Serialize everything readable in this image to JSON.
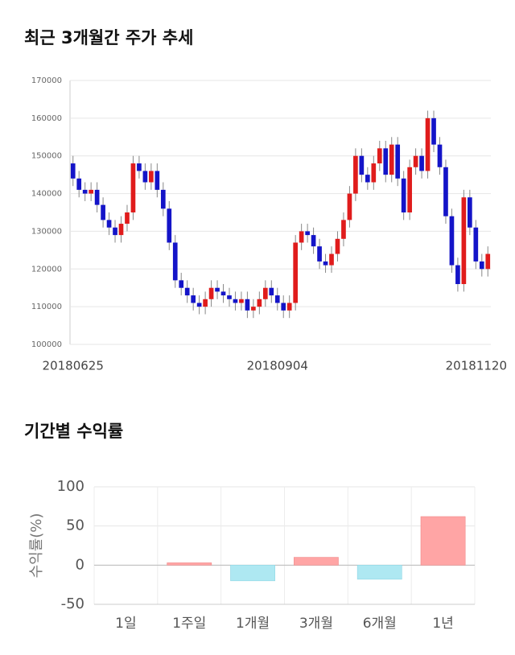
{
  "chart_data": [
    {
      "type": "candlestick",
      "title": "최근 3개월간 주가 추세",
      "categories": [
        "20180625",
        null,
        null,
        null,
        null,
        null,
        null,
        null,
        null,
        null,
        null,
        null,
        null,
        null,
        null,
        null,
        null,
        null,
        null,
        null,
        null,
        null,
        null,
        null,
        null,
        null,
        null,
        null,
        null,
        null,
        null,
        null,
        null,
        null,
        "20180904",
        null,
        null,
        null,
        null,
        null,
        null,
        null,
        null,
        null,
        null,
        null,
        null,
        null,
        null,
        null,
        null,
        null,
        null,
        null,
        null,
        null,
        null,
        null,
        null,
        null,
        null,
        null,
        null,
        null,
        null,
        null,
        null,
        null,
        null,
        "20181120"
      ],
      "open": [
        148000,
        144000,
        141000,
        140000,
        141000,
        137000,
        133000,
        131000,
        129000,
        132000,
        135000,
        148000,
        146000,
        143000,
        146000,
        141000,
        136000,
        127000,
        117000,
        115000,
        113000,
        111000,
        110000,
        112000,
        115000,
        114000,
        113000,
        112000,
        111000,
        112000,
        109000,
        110000,
        112000,
        115000,
        113000,
        111000,
        109000,
        111000,
        127000,
        130000,
        129000,
        126000,
        122000,
        121000,
        124000,
        128000,
        133000,
        140000,
        150000,
        145000,
        143000,
        148000,
        152000,
        145000,
        153000,
        144000,
        135000,
        147000,
        150000,
        146000,
        160000,
        153000,
        147000,
        134000,
        121000,
        116000,
        139000,
        131000,
        122000,
        120000
      ],
      "high": [
        150000,
        146000,
        143000,
        143000,
        143000,
        139000,
        135000,
        133000,
        134000,
        137000,
        150000,
        150000,
        148000,
        148000,
        148000,
        143000,
        138000,
        129000,
        119000,
        117000,
        115000,
        113000,
        114000,
        117000,
        117000,
        116000,
        115000,
        114000,
        114000,
        114000,
        112000,
        114000,
        117000,
        117000,
        115000,
        113000,
        113000,
        129000,
        132000,
        132000,
        131000,
        128000,
        124000,
        126000,
        130000,
        135000,
        142000,
        152000,
        152000,
        147000,
        150000,
        154000,
        154000,
        155000,
        155000,
        146000,
        149000,
        152000,
        152000,
        162000,
        162000,
        155000,
        149000,
        136000,
        123000,
        141000,
        141000,
        133000,
        124000,
        126000
      ],
      "low": [
        142000,
        139000,
        138000,
        138000,
        135000,
        131000,
        129000,
        127000,
        127000,
        130000,
        133000,
        144000,
        141000,
        141000,
        139000,
        134000,
        125000,
        115000,
        113000,
        111000,
        109000,
        108000,
        108000,
        110000,
        112000,
        111000,
        110000,
        109000,
        109000,
        107000,
        107000,
        108000,
        110000,
        111000,
        109000,
        107000,
        107000,
        109000,
        125000,
        127000,
        124000,
        120000,
        119000,
        119000,
        122000,
        126000,
        131000,
        138000,
        143000,
        141000,
        141000,
        146000,
        143000,
        143000,
        142000,
        133000,
        133000,
        145000,
        144000,
        144000,
        151000,
        145000,
        132000,
        119000,
        114000,
        114000,
        129000,
        120000,
        118000,
        118000
      ],
      "close": [
        144000,
        141000,
        140000,
        141000,
        137000,
        133000,
        131000,
        129000,
        132000,
        135000,
        148000,
        146000,
        143000,
        146000,
        141000,
        136000,
        127000,
        117000,
        115000,
        113000,
        111000,
        110000,
        112000,
        115000,
        114000,
        113000,
        112000,
        111000,
        112000,
        109000,
        110000,
        112000,
        115000,
        113000,
        111000,
        109000,
        111000,
        127000,
        130000,
        129000,
        126000,
        122000,
        121000,
        124000,
        128000,
        133000,
        140000,
        150000,
        145000,
        143000,
        148000,
        152000,
        145000,
        153000,
        144000,
        135000,
        147000,
        150000,
        146000,
        160000,
        153000,
        147000,
        134000,
        121000,
        116000,
        139000,
        131000,
        122000,
        120000,
        124000
      ],
      "up_color": "#e01c1c",
      "down_color": "#1414c8",
      "ylim": [
        100000,
        170000
      ],
      "yticks": [
        100000,
        110000,
        120000,
        130000,
        140000,
        150000,
        160000,
        170000
      ],
      "grid": true
    },
    {
      "type": "bar",
      "title": "기간별 수익률",
      "y_label": "수익률(%)",
      "categories": [
        "1일",
        "1주일",
        "1개월",
        "3개월",
        "6개월",
        "1년"
      ],
      "values": [
        0,
        3,
        -20,
        10,
        -18,
        62
      ],
      "positive_color": "#ffa5a5",
      "negative_color": "#aee8f2",
      "ylim": [
        -50,
        100
      ],
      "yticks": [
        -50,
        0,
        50,
        100
      ],
      "grid": true
    }
  ]
}
